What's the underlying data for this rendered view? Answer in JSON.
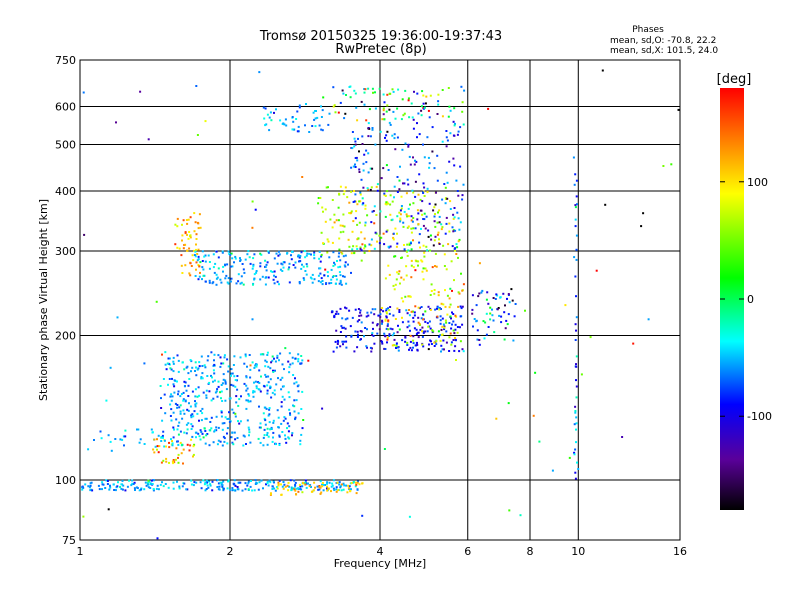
{
  "chart_data": {
    "type": "scatter",
    "title": "Tromsø 20150325 19:36:00-19:37:43",
    "subtitle": "RwPretec (8p)",
    "xlabel": "Frequency [MHz]",
    "ylabel": "Stationary phase Virtual Height [km]",
    "x_scale": "log",
    "y_scale": "log",
    "xlim": [
      1,
      16
    ],
    "ylim": [
      75,
      750
    ],
    "x_ticks": [
      1,
      2,
      4,
      6,
      8,
      10,
      16
    ],
    "y_ticks": [
      75,
      100,
      200,
      300,
      400,
      500,
      600,
      750
    ],
    "grid": true,
    "phase_stats": {
      "header": "Phases",
      "o_line": "mean, sd,O: -70.8, 22.2",
      "x_line": "mean, sd,X: 101.5, 24.0"
    },
    "colorbar": {
      "label": "[deg]",
      "ticks": [
        100,
        0,
        -100
      ],
      "range": [
        -180,
        180
      ],
      "colormap": "rainbow (black-purple-blue-cyan-green-yellow-red)"
    },
    "clusters": [
      {
        "x_range": [
          1.0,
          3.7
        ],
        "y_range": [
          95,
          100
        ],
        "phase_mean": -60,
        "phase_sd": 18,
        "count": 260
      },
      {
        "x_range": [
          2.4,
          3.7
        ],
        "y_range": [
          93,
          99
        ],
        "phase_mean": 110,
        "phase_sd": 20,
        "count": 60
      },
      {
        "x_range": [
          1.0,
          1.5
        ],
        "y_range": [
          115,
          128
        ],
        "phase_mean": -60,
        "phase_sd": 20,
        "count": 30
      },
      {
        "x_range": [
          1.4,
          1.7
        ],
        "y_range": [
          108,
          122
        ],
        "phase_mean": 110,
        "phase_sd": 30,
        "count": 40
      },
      {
        "x_range": [
          1.45,
          2.8
        ],
        "y_range": [
          118,
          185
        ],
        "phase_mean": -60,
        "phase_sd": 20,
        "count": 500
      },
      {
        "x_range": [
          1.55,
          1.75
        ],
        "y_range": [
          265,
          360
        ],
        "phase_mean": 120,
        "phase_sd": 25,
        "count": 60
      },
      {
        "x_range": [
          1.7,
          3.5
        ],
        "y_range": [
          255,
          300
        ],
        "phase_mean": -60,
        "phase_sd": 20,
        "count": 240
      },
      {
        "x_range": [
          3.0,
          5.8
        ],
        "y_range": [
          285,
          410
        ],
        "phase_mean": 80,
        "phase_sd": 30,
        "count": 200
      },
      {
        "x_range": [
          2.3,
          3.2
        ],
        "y_range": [
          530,
          610
        ],
        "phase_mean": -60,
        "phase_sd": 20,
        "count": 50
      },
      {
        "x_range": [
          3.2,
          5.9
        ],
        "y_range": [
          560,
          660
        ],
        "phase_mean": -20,
        "phase_sd": 80,
        "count": 90
      },
      {
        "x_range": [
          3.5,
          5.9
        ],
        "y_range": [
          300,
          560
        ],
        "phase_mean": -90,
        "phase_sd": 40,
        "count": 230
      },
      {
        "x_range": [
          3.2,
          5.9
        ],
        "y_range": [
          185,
          230
        ],
        "phase_mean": -100,
        "phase_sd": 20,
        "count": 250
      },
      {
        "x_range": [
          4.0,
          5.9
        ],
        "y_range": [
          190,
          280
        ],
        "phase_mean": 90,
        "phase_sd": 35,
        "count": 120
      },
      {
        "x_range": [
          6.1,
          7.5
        ],
        "y_range": [
          190,
          250
        ],
        "phase_mean": -80,
        "phase_sd": 60,
        "count": 60
      },
      {
        "x_range": [
          9.8,
          9.95
        ],
        "y_range": [
          100,
          500
        ],
        "phase_mean": -80,
        "phase_sd": 30,
        "count": 40
      },
      {
        "x_range": [
          1.0,
          16.0
        ],
        "y_range": [
          75,
          750
        ],
        "phase_mean": 0,
        "phase_sd": 110,
        "count": 80
      }
    ]
  }
}
